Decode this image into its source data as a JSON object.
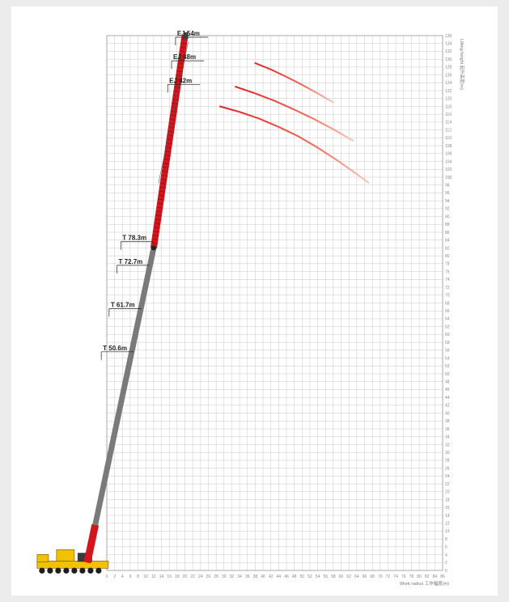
{
  "chart_data": {
    "type": "line",
    "title": "",
    "xlabel": "Work radius 工作幅度(m)",
    "ylabel": "Lifting height 起升高度(m)",
    "xlim": [
      0,
      86
    ],
    "ylim": [
      0,
      136
    ],
    "x_ticks": [
      0,
      2,
      4,
      6,
      8,
      10,
      12,
      14,
      16,
      18,
      20,
      22,
      24,
      26,
      28,
      30,
      32,
      34,
      36,
      38,
      40,
      42,
      44,
      46,
      48,
      50,
      52,
      54,
      56,
      58,
      60,
      62,
      64,
      66,
      68,
      70,
      72,
      74,
      76,
      78,
      80,
      82,
      84,
      86
    ],
    "y_ticks": [
      0,
      2,
      4,
      6,
      8,
      10,
      12,
      14,
      16,
      18,
      20,
      22,
      24,
      26,
      28,
      30,
      32,
      34,
      36,
      38,
      40,
      42,
      44,
      46,
      48,
      50,
      52,
      54,
      56,
      58,
      60,
      62,
      64,
      66,
      68,
      70,
      72,
      74,
      76,
      78,
      80,
      82,
      84,
      86,
      88,
      90,
      92,
      94,
      96,
      98,
      100,
      102,
      104,
      106,
      108,
      110,
      112,
      114,
      116,
      118,
      120,
      122,
      124,
      126,
      128,
      130,
      132,
      134,
      136
    ],
    "grid": true,
    "legend": "none",
    "main_boom": {
      "base": [
        -5,
        2
      ],
      "tip": [
        12,
        82
      ],
      "sections": [
        {
          "label": "T 50.6m",
          "at": [
            -1,
            56
          ]
        },
        {
          "label": "T 61.7m",
          "at": [
            1,
            67
          ]
        },
        {
          "label": "T 72.7m",
          "at": [
            3,
            78
          ]
        },
        {
          "label": "T 78.3m",
          "at": [
            4,
            84
          ]
        }
      ]
    },
    "jib": {
      "base": [
        12,
        82
      ],
      "tip": [
        20,
        136
      ],
      "sections": [
        {
          "label": "EJ 42m",
          "at": [
            16,
            124
          ]
        },
        {
          "label": "EJ 48m",
          "at": [
            17,
            130
          ]
        },
        {
          "label": "EJ 54m",
          "at": [
            18,
            136
          ]
        }
      ]
    },
    "series": [
      {
        "x": [
          38,
          42,
          46,
          50,
          54,
          58
        ],
        "y": [
          129,
          127.4,
          125.5,
          123.5,
          121.3,
          119
        ]
      },
      {
        "x": [
          33,
          38,
          43,
          48,
          53,
          58,
          63
        ],
        "y": [
          123,
          121.3,
          119.4,
          117.2,
          114.8,
          112.2,
          109.3
        ]
      },
      {
        "x": [
          29,
          34,
          39,
          44,
          49,
          54,
          59,
          64,
          67
        ],
        "y": [
          118,
          116.6,
          114.9,
          112.8,
          110.4,
          107.5,
          104.3,
          100.8,
          98.6
        ]
      }
    ],
    "colors": {
      "curve_start": "#e31e24",
      "curve_end": "#f7c5b8",
      "boom_red": "#d2161e",
      "boom_gray": "#7a7a7a",
      "grid": "#c8c8c8",
      "carrier_yellow": "#f2c200"
    }
  }
}
